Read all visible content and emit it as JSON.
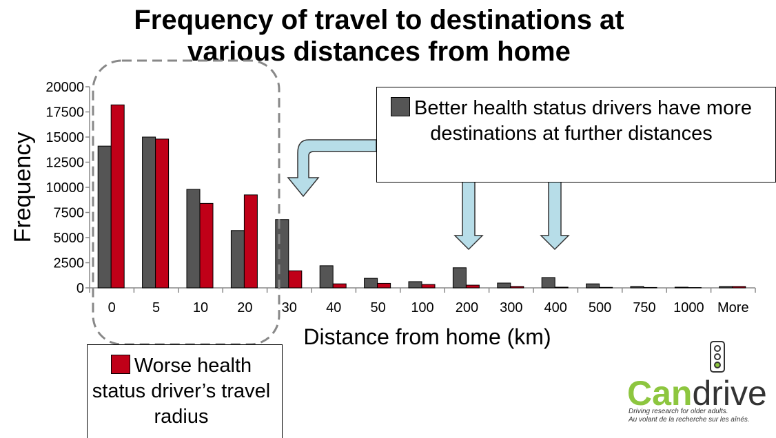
{
  "chart_data": {
    "type": "bar",
    "title": "Frequency of travel to destinations at various distances from home",
    "x_label": "Distance from home (km)",
    "y_label": "Frequency",
    "categories": [
      "0",
      "5",
      "10",
      "20",
      "30",
      "40",
      "50",
      "100",
      "200",
      "300",
      "400",
      "500",
      "750",
      "1000",
      "More"
    ],
    "series": [
      {
        "name": "Better health status drivers have more destinations at further distances",
        "color": "#555555",
        "values": [
          14100,
          15000,
          9800,
          5700,
          6800,
          2200,
          950,
          620,
          2000,
          480,
          1030,
          400,
          140,
          70,
          140
        ]
      },
      {
        "name": "Worse health status driver’s travel radius",
        "color": "#c00018",
        "values": [
          18200,
          14800,
          8400,
          9250,
          1700,
          400,
          450,
          340,
          270,
          140,
          70,
          50,
          40,
          30,
          140
        ]
      }
    ],
    "ylim": [
      0,
      20000
    ],
    "yticks": [
      0,
      2500,
      5000,
      7500,
      10000,
      12500,
      15000,
      17500,
      20000
    ]
  },
  "logo": {
    "name_part1": "Can",
    "name_part2": "drive",
    "tagline_en": "Driving research for older adults.",
    "tagline_fr": "Au volant de la recherche sur les aînés."
  }
}
